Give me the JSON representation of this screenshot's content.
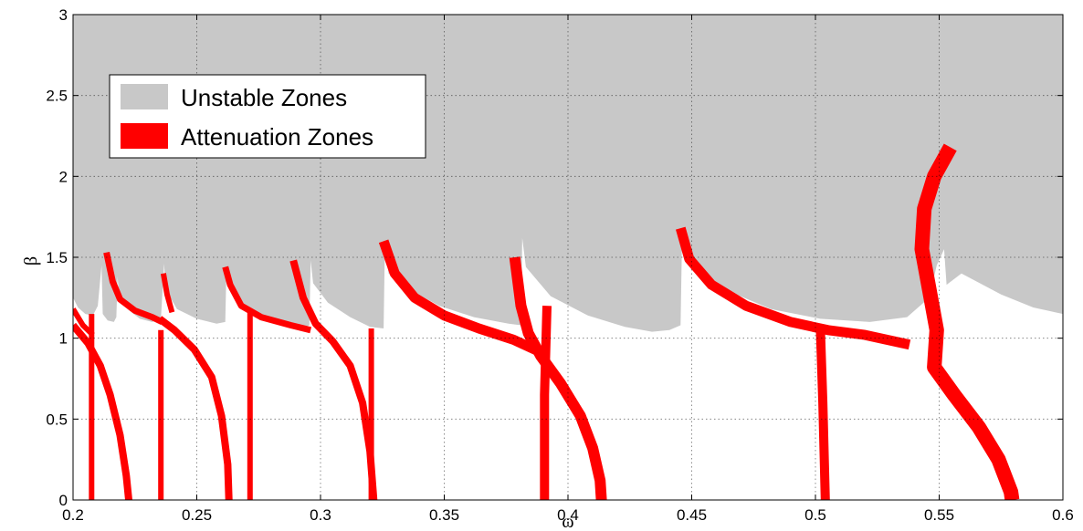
{
  "chart_data": {
    "type": "area",
    "xlabel": "ω",
    "ylabel": "β",
    "xlim": [
      0.2,
      0.6
    ],
    "ylim": [
      0,
      3
    ],
    "xticks": [
      "0.2",
      "0.25",
      "0.3",
      "0.35",
      "0.4",
      "0.45",
      "0.5",
      "0.55",
      "0.6"
    ],
    "yticks": [
      "0",
      "0.5",
      "1",
      "1.5",
      "2",
      "2.5",
      "3"
    ],
    "grid": true,
    "legend_position": "top-left",
    "colors": {
      "unstable": "#c8c8c8",
      "attenuation": "#ff0000"
    },
    "legend": [
      {
        "label": "Unstable Zones",
        "color": "#c8c8c8"
      },
      {
        "label": "Attenuation Zones",
        "color": "#ff0000"
      }
    ],
    "series": [
      {
        "name": "Unstable Zones",
        "kind": "region",
        "boundary_lower": [
          [
            0.2,
            1.25
          ],
          [
            0.202,
            1.19
          ],
          [
            0.205,
            1.15
          ],
          [
            0.208,
            1.14
          ],
          [
            0.21,
            1.2
          ],
          [
            0.2115,
            1.45
          ],
          [
            0.212,
            1.15
          ],
          [
            0.214,
            1.11
          ],
          [
            0.2165,
            1.1
          ],
          [
            0.2175,
            1.13
          ],
          [
            0.218,
            1.38
          ],
          [
            0.2185,
            1.28
          ],
          [
            0.222,
            1.18
          ],
          [
            0.227,
            1.12
          ],
          [
            0.232,
            1.1
          ],
          [
            0.2355,
            1.12
          ],
          [
            0.2368,
            1.46
          ],
          [
            0.2375,
            1.3
          ],
          [
            0.242,
            1.18
          ],
          [
            0.25,
            1.12
          ],
          [
            0.258,
            1.09
          ],
          [
            0.2615,
            1.1
          ],
          [
            0.262,
            1.43
          ],
          [
            0.263,
            1.3
          ],
          [
            0.268,
            1.18
          ],
          [
            0.276,
            1.11
          ],
          [
            0.286,
            1.08
          ],
          [
            0.292,
            1.06
          ],
          [
            0.2955,
            1.08
          ],
          [
            0.296,
            1.48
          ],
          [
            0.297,
            1.34
          ],
          [
            0.303,
            1.22
          ],
          [
            0.312,
            1.13
          ],
          [
            0.32,
            1.07
          ],
          [
            0.3255,
            1.06
          ],
          [
            0.326,
            1.58
          ],
          [
            0.3275,
            1.4
          ],
          [
            0.336,
            1.3
          ],
          [
            0.348,
            1.2
          ],
          [
            0.362,
            1.13
          ],
          [
            0.376,
            1.09
          ],
          [
            0.381,
            1.08
          ],
          [
            0.3815,
            1.62
          ],
          [
            0.383,
            1.44
          ],
          [
            0.393,
            1.26
          ],
          [
            0.408,
            1.14
          ],
          [
            0.423,
            1.07
          ],
          [
            0.434,
            1.04
          ],
          [
            0.441,
            1.05
          ],
          [
            0.4455,
            1.08
          ],
          [
            0.446,
            1.55
          ],
          [
            0.451,
            1.44
          ],
          [
            0.465,
            1.29
          ],
          [
            0.482,
            1.18
          ],
          [
            0.502,
            1.12
          ],
          [
            0.522,
            1.1
          ],
          [
            0.537,
            1.13
          ],
          [
            0.546,
            1.25
          ],
          [
            0.549,
            1.45
          ],
          [
            0.552,
            1.55
          ],
          [
            0.553,
            1.33
          ],
          [
            0.559,
            1.4
          ],
          [
            0.575,
            1.27
          ],
          [
            0.588,
            1.19
          ],
          [
            0.6,
            1.15
          ]
        ]
      },
      {
        "name": "Attenuation Zones",
        "kind": "region",
        "branches": [
          {
            "label": "band-1-curve",
            "points": [
              [
                0.2,
                1.08
              ],
              [
                0.206,
                0.97
              ],
              [
                0.211,
                0.83
              ],
              [
                0.215,
                0.65
              ],
              [
                0.219,
                0.4
              ],
              [
                0.2215,
                0.15
              ],
              [
                0.2225,
                0.0
              ]
            ]
          },
          {
            "label": "band-1-upper",
            "points": [
              [
                0.2,
                1.18
              ],
              [
                0.204,
                1.08
              ],
              [
                0.208,
                1.02
              ]
            ]
          },
          {
            "label": "band-1-vertical",
            "points": [
              [
                0.2075,
                1.15
              ],
              [
                0.2075,
                0.0
              ]
            ]
          },
          {
            "label": "band-2-cusp",
            "points": [
              [
                0.2135,
                1.53
              ],
              [
                0.216,
                1.35
              ],
              [
                0.219,
                1.24
              ],
              [
                0.225,
                1.17
              ],
              [
                0.232,
                1.13
              ],
              [
                0.236,
                1.1
              ]
            ]
          },
          {
            "label": "band-2-curve",
            "points": [
              [
                0.235,
                1.12
              ],
              [
                0.241,
                1.05
              ],
              [
                0.249,
                0.93
              ],
              [
                0.256,
                0.76
              ],
              [
                0.26,
                0.52
              ],
              [
                0.2625,
                0.22
              ],
              [
                0.263,
                0.0
              ]
            ]
          },
          {
            "label": "band-2-upper",
            "points": [
              [
                0.2365,
                1.4
              ],
              [
                0.238,
                1.27
              ],
              [
                0.24,
                1.16
              ]
            ]
          },
          {
            "label": "band-2-vertical",
            "points": [
              [
                0.2355,
                1.05
              ],
              [
                0.2355,
                0.0
              ]
            ]
          },
          {
            "label": "band-3-cusp",
            "points": [
              [
                0.2615,
                1.44
              ],
              [
                0.2635,
                1.33
              ],
              [
                0.268,
                1.2
              ],
              [
                0.276,
                1.13
              ],
              [
                0.288,
                1.08
              ],
              [
                0.296,
                1.05
              ]
            ]
          },
          {
            "label": "band-3-vertical",
            "points": [
              [
                0.2715,
                1.18
              ],
              [
                0.2715,
                0.0
              ]
            ]
          },
          {
            "label": "band-3-curve",
            "points": [
              [
                0.289,
                1.48
              ],
              [
                0.293,
                1.25
              ],
              [
                0.298,
                1.09
              ],
              [
                0.305,
                0.98
              ],
              [
                0.312,
                0.83
              ],
              [
                0.317,
                0.6
              ],
              [
                0.32,
                0.3
              ],
              [
                0.3215,
                0.0
              ]
            ]
          },
          {
            "label": "band-4-vertical",
            "points": [
              [
                0.3205,
                1.06
              ],
              [
                0.3205,
                0.0
              ]
            ]
          },
          {
            "label": "band-5-cusp",
            "points": [
              [
                0.3255,
                1.6
              ],
              [
                0.33,
                1.4
              ],
              [
                0.338,
                1.25
              ],
              [
                0.35,
                1.14
              ],
              [
                0.364,
                1.06
              ],
              [
                0.378,
                0.99
              ],
              [
                0.388,
                0.92
              ]
            ]
          },
          {
            "label": "band-5-curve",
            "points": [
              [
                0.3785,
                1.5
              ],
              [
                0.381,
                1.2
              ],
              [
                0.384,
                1.03
              ],
              [
                0.389,
                0.89
              ],
              [
                0.397,
                0.72
              ],
              [
                0.405,
                0.52
              ],
              [
                0.41,
                0.32
              ],
              [
                0.413,
                0.12
              ],
              [
                0.4135,
                0.0
              ]
            ]
          },
          {
            "label": "band-5-vertical",
            "points": [
              [
                0.3915,
                1.2
              ],
              [
                0.3905,
                0.65
              ],
              [
                0.3905,
                0.0
              ]
            ]
          },
          {
            "label": "band-6-cusp",
            "points": [
              [
                0.4455,
                1.68
              ],
              [
                0.449,
                1.49
              ],
              [
                0.458,
                1.33
              ],
              [
                0.472,
                1.2
              ],
              [
                0.49,
                1.1
              ],
              [
                0.505,
                1.05
              ],
              [
                0.52,
                1.02
              ],
              [
                0.538,
                0.96
              ]
            ]
          },
          {
            "label": "band-6-vertical",
            "points": [
              [
                0.502,
                1.06
              ],
              [
                0.503,
                0.6
              ],
              [
                0.504,
                0.0
              ]
            ]
          },
          {
            "label": "band-6-curve",
            "points": [
              [
                0.5545,
                2.18
              ],
              [
                0.548,
                2.0
              ],
              [
                0.544,
                1.8
              ],
              [
                0.543,
                1.55
              ],
              [
                0.546,
                1.3
              ],
              [
                0.549,
                1.05
              ],
              [
                0.548,
                0.82
              ],
              [
                0.556,
                0.65
              ],
              [
                0.566,
                0.45
              ],
              [
                0.574,
                0.25
              ],
              [
                0.579,
                0.05
              ],
              [
                0.5795,
                0.0
              ]
            ]
          }
        ]
      }
    ]
  }
}
